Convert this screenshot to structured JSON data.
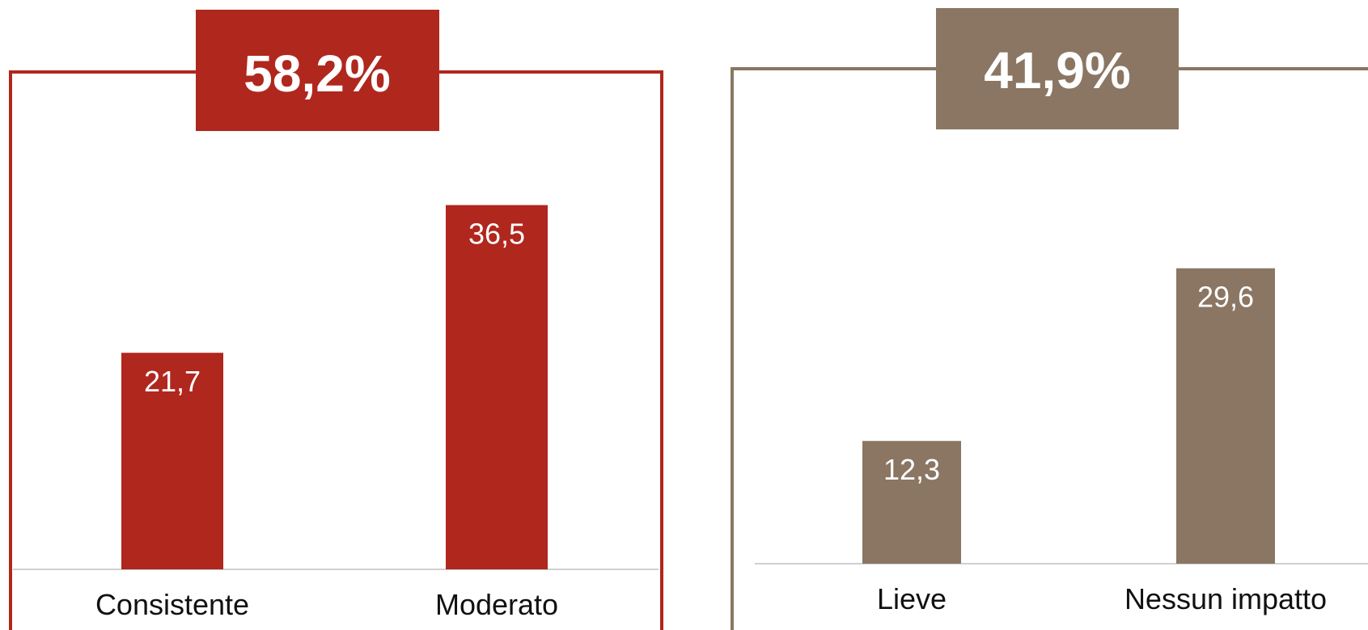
{
  "chart_data": [
    {
      "type": "bar",
      "group_total": "58,2%",
      "categories": [
        "Consistente",
        "Moderato"
      ],
      "values": [
        21.7,
        36.5
      ],
      "value_labels": [
        "21,7",
        "36,5"
      ],
      "color": "#b0271e",
      "ylim": [
        0,
        40
      ],
      "grid": false
    },
    {
      "type": "bar",
      "group_total": "41,9%",
      "categories": [
        "Lieve",
        "Nessun impatto"
      ],
      "values": [
        12.3,
        29.6
      ],
      "value_labels": [
        "12,3",
        "29,6"
      ],
      "color": "#8a7663",
      "ylim": [
        0,
        40
      ],
      "grid": false
    }
  ]
}
